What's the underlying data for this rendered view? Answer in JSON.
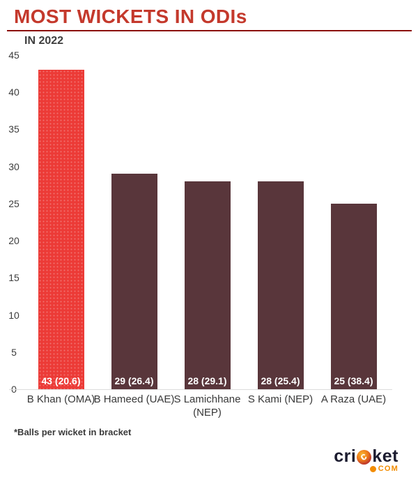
{
  "header": {
    "title": "MOST WICKETS IN ODIs",
    "subtitle": "IN 2022"
  },
  "chart_data": {
    "type": "bar",
    "title": "MOST WICKETS IN ODIs",
    "subtitle": "IN 2022",
    "categories": [
      "B Khan (OMA)",
      "B Hameed (UAE)",
      "S Lamichhane (NEP)",
      "S Kami (NEP)",
      "A Raza (UAE)"
    ],
    "values": [
      43,
      29,
      28,
      28,
      25
    ],
    "balls_per_wicket": [
      20.6,
      26.4,
      29.1,
      25.4,
      38.4
    ],
    "bar_labels": [
      "43 (20.6)",
      "29 (26.4)",
      "28 (29.1)",
      "28 (25.4)",
      "25 (38.4)"
    ],
    "highlight_index": 0,
    "xlabel": "",
    "ylabel": "",
    "ylim": [
      0,
      45
    ],
    "yticks": [
      0,
      5,
      10,
      15,
      20,
      25,
      30,
      35,
      40,
      45
    ],
    "grid": false,
    "legend": false,
    "colors": {
      "highlight_bar": "#EC3B37",
      "default_bar": "#59363B"
    }
  },
  "footnote": "*Balls per wicket in bracket",
  "logo": {
    "brand_pre": "cri",
    "ball_letter": "c",
    "brand_post": "ket",
    "tld": "COM"
  },
  "colors": {
    "title_red": "#C4392C",
    "divider_red": "#8B0F09",
    "text_dark": "#3C3C3C",
    "axis_line": "#DCDCDC",
    "logo_dark": "#1B1B2F",
    "logo_orange": "#F28C00",
    "bar_value_text": "#FFFFFF"
  }
}
